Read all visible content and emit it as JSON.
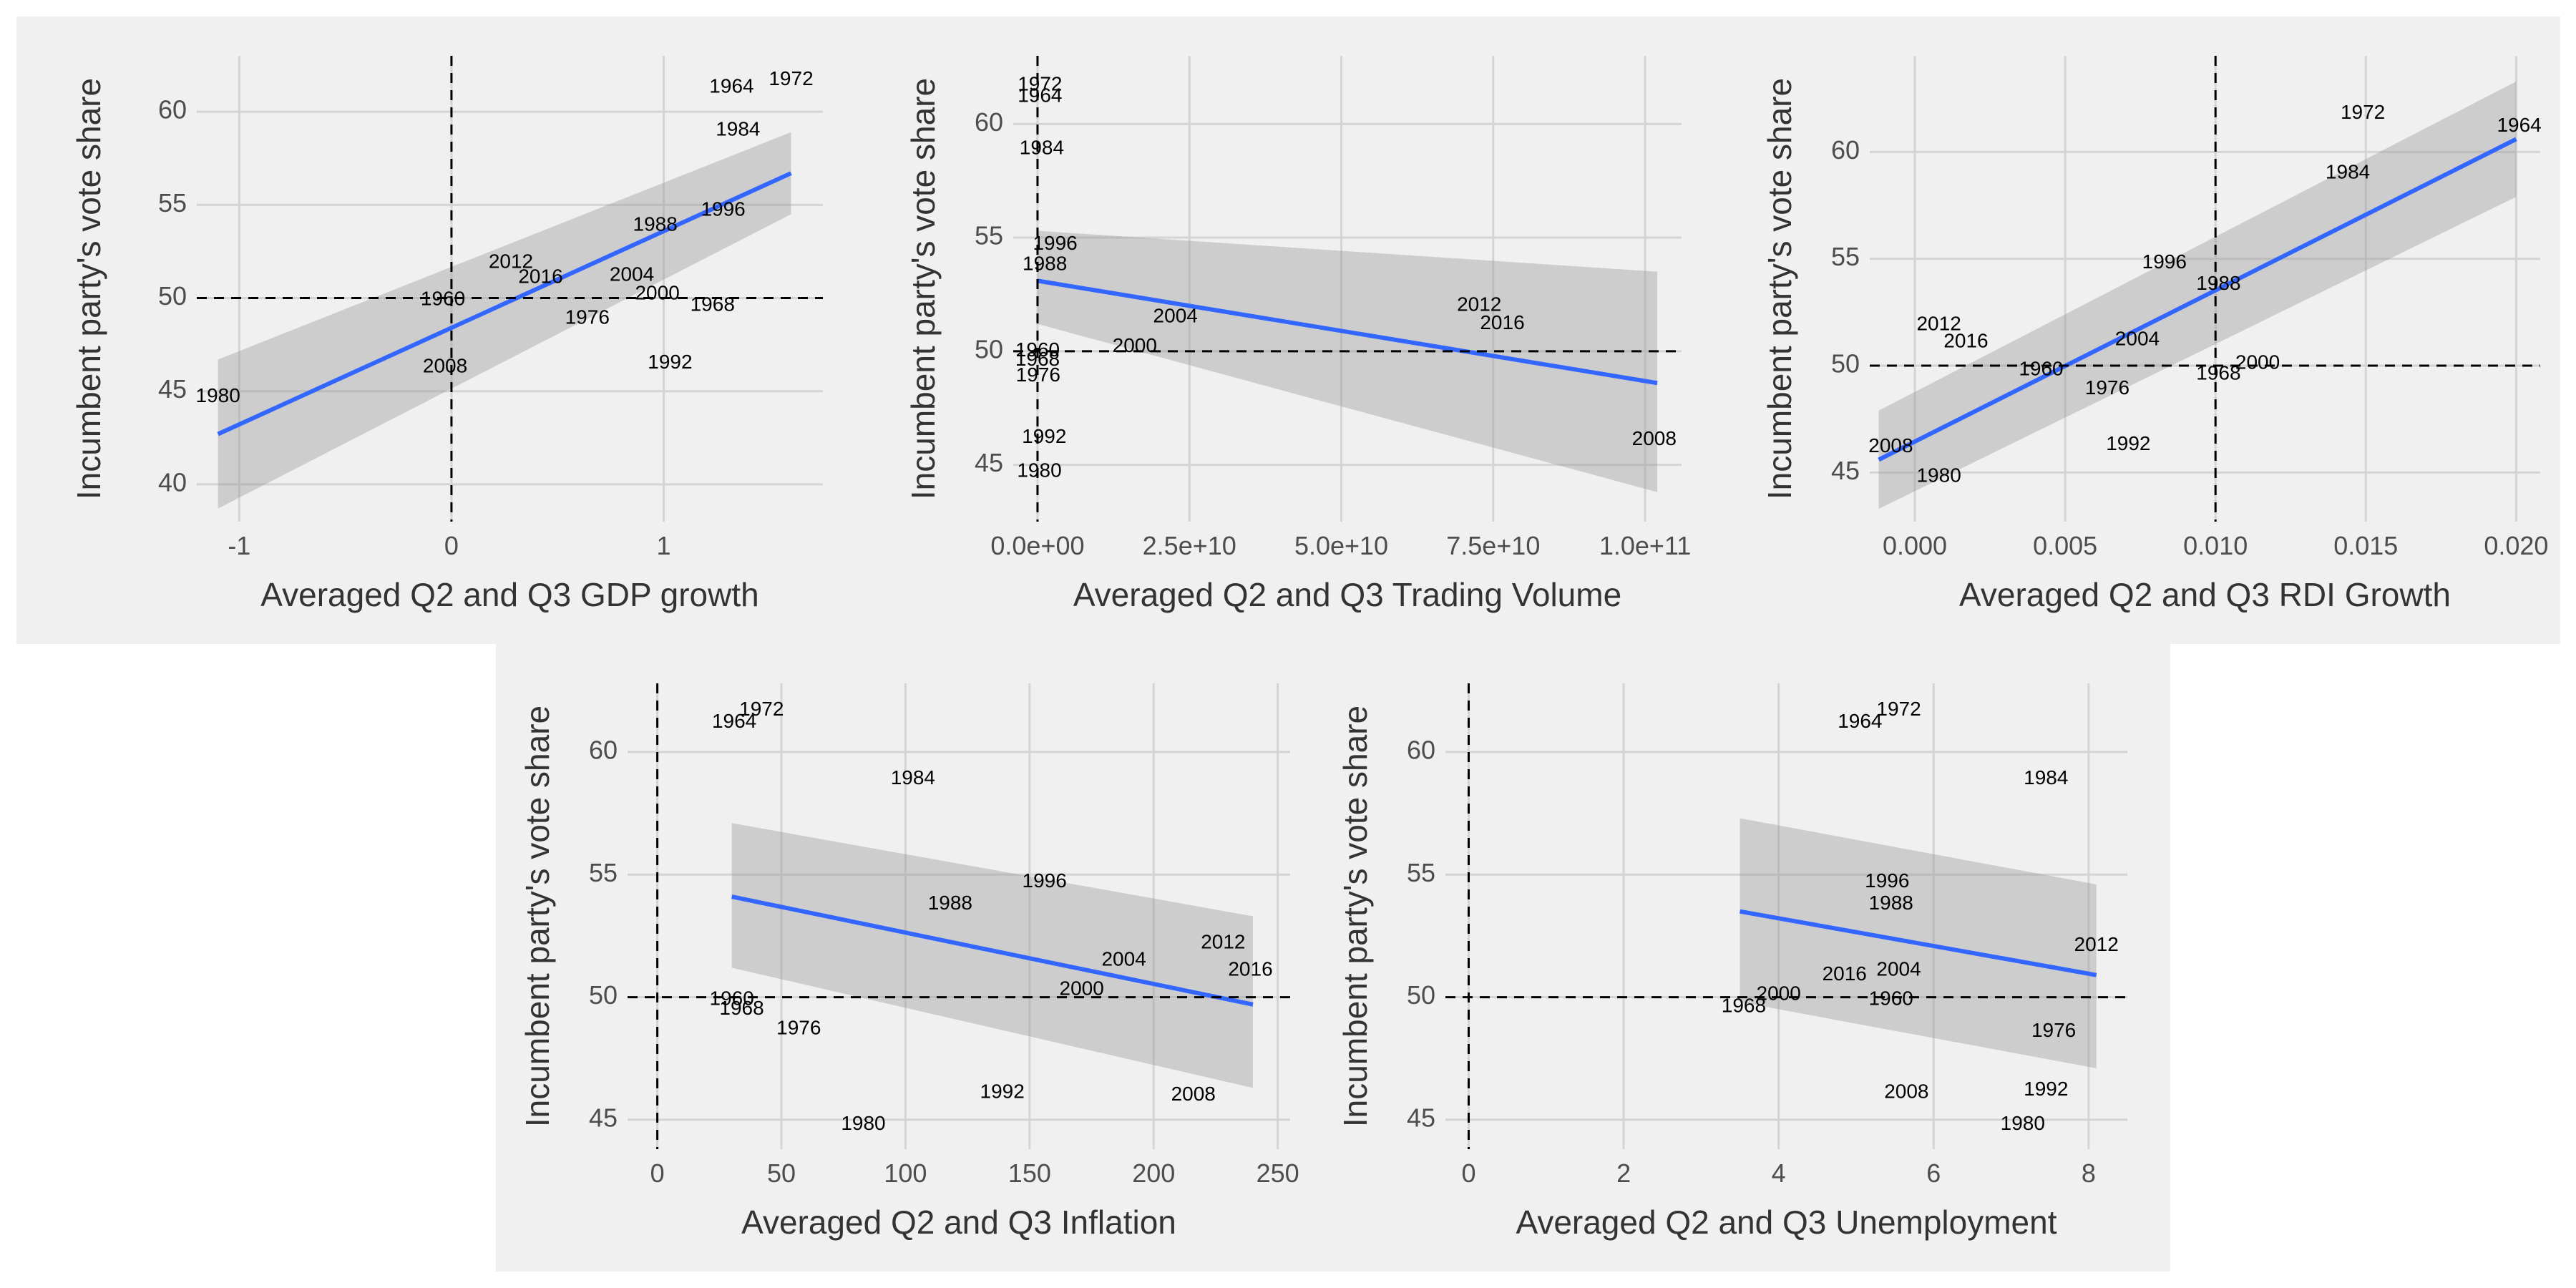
{
  "chart_data": [
    {
      "type": "scatter",
      "title": "",
      "xlabel": "Averaged Q2 and Q3 GDP growth",
      "ylabel": "Incumbent party's vote share",
      "xlim": [
        -1.2,
        1.75
      ],
      "ylim": [
        38,
        63
      ],
      "xticks": [
        -1,
        0,
        1
      ],
      "xtick_labels": [
        "-1",
        "0",
        "1"
      ],
      "yticks": [
        40,
        45,
        50,
        55,
        60
      ],
      "ytick_labels": [
        "40",
        "45",
        "50",
        "55",
        "60"
      ],
      "vline": 0,
      "hline": 50,
      "grid": true,
      "points": [
        {
          "label": "1964",
          "x": 1.32,
          "y": 61.3
        },
        {
          "label": "1972",
          "x": 1.6,
          "y": 61.7
        },
        {
          "label": "1984",
          "x": 1.35,
          "y": 59.0
        },
        {
          "label": "1996",
          "x": 1.28,
          "y": 54.7
        },
        {
          "label": "1988",
          "x": 0.96,
          "y": 53.9
        },
        {
          "label": "2012",
          "x": 0.28,
          "y": 51.9
        },
        {
          "label": "2016",
          "x": 0.42,
          "y": 51.1
        },
        {
          "label": "2004",
          "x": 0.85,
          "y": 51.2
        },
        {
          "label": "1960",
          "x": -0.04,
          "y": 49.9
        },
        {
          "label": "2000",
          "x": 0.97,
          "y": 50.2
        },
        {
          "label": "1968",
          "x": 1.23,
          "y": 49.6
        },
        {
          "label": "1976",
          "x": 0.64,
          "y": 48.9
        },
        {
          "label": "2008",
          "x": -0.03,
          "y": 46.3
        },
        {
          "label": "1992",
          "x": 1.03,
          "y": 46.5
        },
        {
          "label": "1980",
          "x": -1.1,
          "y": 44.7
        }
      ],
      "fit": {
        "x": [
          -1.1,
          1.6
        ],
        "y": [
          42.7,
          56.7
        ],
        "ci_lower": [
          38.7,
          54.5
        ],
        "ci_upper": [
          46.7,
          58.9
        ]
      }
    },
    {
      "type": "scatter",
      "title": "",
      "xlabel": "Averaged Q2 and Q3 Trading Volume",
      "ylabel": "Incumbent party's vote share",
      "xlim": [
        -4000000000,
        106000000000
      ],
      "ylim": [
        42.5,
        63
      ],
      "xticks": [
        0,
        25000000000,
        50000000000,
        75000000000,
        100000000000
      ],
      "xtick_labels": [
        "0.0e+00",
        "2.5e+10",
        "5.0e+10",
        "7.5e+10",
        "1.0e+11"
      ],
      "yticks": [
        45,
        50,
        55,
        60
      ],
      "ytick_labels": [
        "45",
        "50",
        "55",
        "60"
      ],
      "vline": 0,
      "hline": 50,
      "grid": true,
      "points": [
        {
          "label": "1972",
          "x": 400000000,
          "y": 61.7
        },
        {
          "label": "1964",
          "x": 400000000,
          "y": 61.2
        },
        {
          "label": "1984",
          "x": 700000000,
          "y": 58.9
        },
        {
          "label": "1996",
          "x": 2900000000,
          "y": 54.7
        },
        {
          "label": "1988",
          "x": 1200000000,
          "y": 53.8
        },
        {
          "label": "2004",
          "x": 22700000000,
          "y": 51.5
        },
        {
          "label": "2000",
          "x": 16000000000,
          "y": 50.2
        },
        {
          "label": "1960",
          "x": 0,
          "y": 50.0
        },
        {
          "label": "1968",
          "x": 0,
          "y": 49.6
        },
        {
          "label": "1976",
          "x": 100000000,
          "y": 48.9
        },
        {
          "label": "1992",
          "x": 1100000000,
          "y": 46.2
        },
        {
          "label": "1980",
          "x": 300000000,
          "y": 44.7
        },
        {
          "label": "2012",
          "x": 72700000000,
          "y": 52.0
        },
        {
          "label": "2016",
          "x": 76500000000,
          "y": 51.2
        },
        {
          "label": "2008",
          "x": 101500000000,
          "y": 46.1
        }
      ],
      "fit": {
        "x": [
          0,
          102000000000
        ],
        "y": [
          53.1,
          48.6
        ],
        "ci_lower": [
          51.2,
          43.8
        ],
        "ci_upper": [
          55.3,
          53.5
        ]
      }
    },
    {
      "type": "scatter",
      "title": "",
      "xlabel": "Averaged Q2 and Q3 RDI Growth",
      "ylabel": "Incumbent party's vote share",
      "xlim": [
        -0.0015,
        0.0208
      ],
      "ylim": [
        42.7,
        64.5
      ],
      "xticks": [
        0.0,
        0.005,
        0.01,
        0.015,
        0.02
      ],
      "xtick_labels": [
        "0.000",
        "0.005",
        "0.010",
        "0.015",
        "0.020"
      ],
      "yticks": [
        45,
        50,
        55,
        60
      ],
      "ytick_labels": [
        "45",
        "50",
        "55",
        "60"
      ],
      "vline": 0.01,
      "hline": 50,
      "grid": true,
      "points": [
        {
          "label": "1972",
          "x": 0.0149,
          "y": 61.8
        },
        {
          "label": "1964",
          "x": 0.0201,
          "y": 61.2
        },
        {
          "label": "1984",
          "x": 0.0144,
          "y": 59.0
        },
        {
          "label": "1996",
          "x": 0.0083,
          "y": 54.8
        },
        {
          "label": "1988",
          "x": 0.0101,
          "y": 53.8
        },
        {
          "label": "2012",
          "x": 0.0008,
          "y": 51.9
        },
        {
          "label": "2016",
          "x": 0.0017,
          "y": 51.1
        },
        {
          "label": "2004",
          "x": 0.0074,
          "y": 51.2
        },
        {
          "label": "1960",
          "x": 0.0042,
          "y": 49.8
        },
        {
          "label": "2000",
          "x": 0.0114,
          "y": 50.1
        },
        {
          "label": "1968",
          "x": 0.0101,
          "y": 49.6
        },
        {
          "label": "1976",
          "x": 0.0064,
          "y": 48.9
        },
        {
          "label": "1992",
          "x": 0.0071,
          "y": 46.3
        },
        {
          "label": "2008",
          "x": -0.0008,
          "y": 46.2
        },
        {
          "label": "1980",
          "x": 0.0008,
          "y": 44.8
        }
      ],
      "fit": {
        "x": [
          -0.0012,
          0.02
        ],
        "y": [
          45.6,
          60.6
        ],
        "ci_lower": [
          43.3,
          57.9
        ],
        "ci_upper": [
          47.9,
          63.3
        ]
      }
    },
    {
      "type": "scatter",
      "title": "",
      "xlabel": "Averaged Q2 and Q3 Inflation",
      "ylabel": "Incumbent party's vote share",
      "xlim": [
        -12,
        255
      ],
      "ylim": [
        43.8,
        62.8
      ],
      "xticks": [
        0,
        50,
        100,
        150,
        200,
        250
      ],
      "xtick_labels": [
        "0",
        "50",
        "100",
        "150",
        "200",
        "250"
      ],
      "yticks": [
        45,
        50,
        55,
        60
      ],
      "ytick_labels": [
        "45",
        "50",
        "55",
        "60"
      ],
      "vline": 0,
      "hline": 50,
      "grid": true,
      "points": [
        {
          "label": "1972",
          "x": 42,
          "y": 61.7
        },
        {
          "label": "1964",
          "x": 31,
          "y": 61.2
        },
        {
          "label": "1984",
          "x": 103,
          "y": 58.9
        },
        {
          "label": "1996",
          "x": 156,
          "y": 54.7
        },
        {
          "label": "1988",
          "x": 118,
          "y": 53.8
        },
        {
          "label": "2004",
          "x": 188,
          "y": 51.5
        },
        {
          "label": "2012",
          "x": 228,
          "y": 52.2
        },
        {
          "label": "2016",
          "x": 239,
          "y": 51.1
        },
        {
          "label": "2000",
          "x": 171,
          "y": 50.3
        },
        {
          "label": "1960",
          "x": 30,
          "y": 49.9
        },
        {
          "label": "1968",
          "x": 34,
          "y": 49.5
        },
        {
          "label": "1976",
          "x": 57,
          "y": 48.7
        },
        {
          "label": "1992",
          "x": 139,
          "y": 46.1
        },
        {
          "label": "2008",
          "x": 216,
          "y": 46.0
        },
        {
          "label": "1980",
          "x": 83,
          "y": 44.8
        }
      ],
      "fit": {
        "x": [
          30,
          240
        ],
        "y": [
          54.1,
          49.7
        ],
        "ci_lower": [
          51.2,
          46.3
        ],
        "ci_upper": [
          57.1,
          53.3
        ]
      }
    },
    {
      "type": "scatter",
      "title": "",
      "xlabel": "Averaged Q2 and Q3 Unemployment",
      "ylabel": "Incumbent party's vote share",
      "xlim": [
        -0.3,
        8.5
      ],
      "ylim": [
        43.8,
        62.8
      ],
      "xticks": [
        0,
        2,
        4,
        6,
        8
      ],
      "xtick_labels": [
        "0",
        "2",
        "4",
        "6",
        "8"
      ],
      "yticks": [
        45,
        50,
        55,
        60
      ],
      "ytick_labels": [
        "45",
        "50",
        "55",
        "60"
      ],
      "vline": 0,
      "hline": 50,
      "grid": true,
      "points": [
        {
          "label": "1964",
          "x": 5.05,
          "y": 61.2
        },
        {
          "label": "1972",
          "x": 5.55,
          "y": 61.7
        },
        {
          "label": "1984",
          "x": 7.45,
          "y": 58.9
        },
        {
          "label": "1996",
          "x": 5.4,
          "y": 54.7
        },
        {
          "label": "1988",
          "x": 5.45,
          "y": 53.8
        },
        {
          "label": "2016",
          "x": 4.85,
          "y": 50.9
        },
        {
          "label": "2004",
          "x": 5.55,
          "y": 51.1
        },
        {
          "label": "2012",
          "x": 8.1,
          "y": 52.1
        },
        {
          "label": "2000",
          "x": 4.0,
          "y": 50.1
        },
        {
          "label": "1960",
          "x": 5.45,
          "y": 49.9
        },
        {
          "label": "1968",
          "x": 3.55,
          "y": 49.6
        },
        {
          "label": "1976",
          "x": 7.55,
          "y": 48.6
        },
        {
          "label": "2008",
          "x": 5.65,
          "y": 46.1
        },
        {
          "label": "1992",
          "x": 7.45,
          "y": 46.2
        },
        {
          "label": "1980",
          "x": 7.15,
          "y": 44.8
        }
      ],
      "fit": {
        "x": [
          3.5,
          8.1
        ],
        "y": [
          53.5,
          50.9
        ],
        "ci_lower": [
          49.8,
          47.1
        ],
        "ci_upper": [
          57.3,
          54.6
        ]
      }
    }
  ]
}
